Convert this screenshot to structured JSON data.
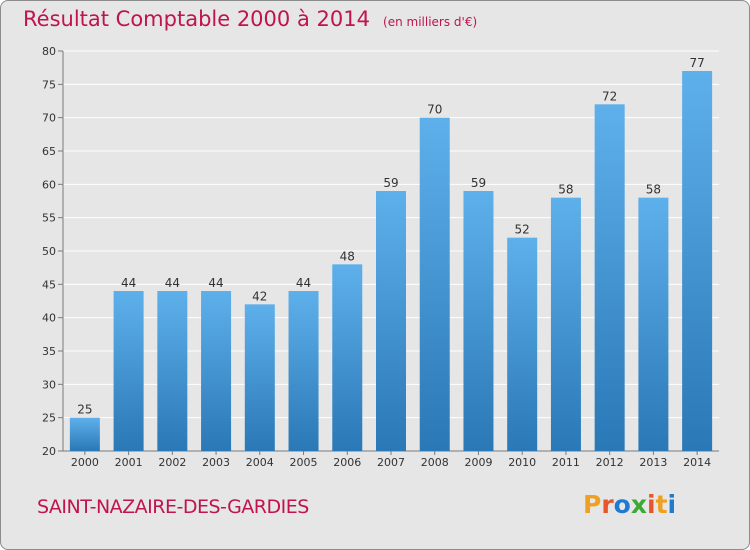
{
  "header": {
    "title": "Résultat Comptable 2000 à 2014",
    "subtitle": "(en milliers d'€)"
  },
  "footer": {
    "place": "SAINT-NAZAIRE-DES-GARDIES",
    "logo_text": "Proxiti"
  },
  "colors": {
    "title": "#c0134f",
    "bar_top": "#5eb0eb",
    "bar_bottom": "#2a78b6",
    "background": "#e6e6e6",
    "grid": "#ffffff",
    "logo_letters": [
      "#f0a020",
      "#e8562a",
      "#1f7bd1",
      "#3aaa35",
      "#e8562a",
      "#f0a020",
      "#1f7bd1"
    ]
  },
  "chart_data": {
    "type": "bar",
    "categories": [
      "2000",
      "2001",
      "2002",
      "2003",
      "2004",
      "2005",
      "2006",
      "2007",
      "2008",
      "2009",
      "2010",
      "2011",
      "2012",
      "2013",
      "2014"
    ],
    "values": [
      25,
      44,
      44,
      44,
      42,
      44,
      48,
      59,
      70,
      59,
      52,
      58,
      72,
      58,
      77
    ],
    "data_labels": [
      "25",
      "44",
      "44",
      "44",
      "42",
      "44",
      "48",
      "59",
      "70",
      "59",
      "52",
      "58",
      "72",
      "58",
      "77"
    ],
    "yticks": [
      "20",
      "25",
      "30",
      "35",
      "40",
      "45",
      "50",
      "55",
      "60",
      "65",
      "70",
      "75",
      "80"
    ],
    "ylim": [
      20,
      80
    ],
    "grid": true,
    "legend": "none"
  }
}
